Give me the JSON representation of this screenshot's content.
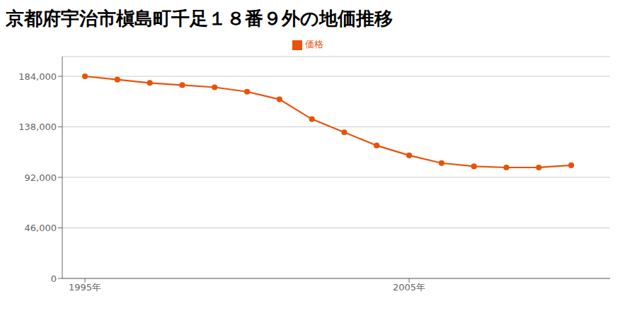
{
  "chart_data": {
    "type": "line",
    "title": "京都府宇治市槇島町千足１８番９外の地価推移",
    "x": [
      1995,
      1996,
      1997,
      1998,
      1999,
      2000,
      2001,
      2002,
      2003,
      2004,
      2005,
      2006,
      2007,
      2008,
      2009,
      2010
    ],
    "series": [
      {
        "name": "価格",
        "color": "#e8520a",
        "marker": "circle",
        "values": [
          184000,
          181000,
          178000,
          176000,
          174000,
          170000,
          163000,
          145000,
          133000,
          121000,
          112000,
          105000,
          102000,
          101000,
          101000,
          103000
        ]
      }
    ],
    "xlim": [
      1994.3,
      2011.2
    ],
    "xticks": [
      {
        "value": 1995,
        "label": "1995年"
      },
      {
        "value": 2005,
        "label": "2005年"
      }
    ],
    "ylim": [
      0,
      202000
    ],
    "yticks": [
      0,
      {
        "value": 46000,
        "label": "46,000"
      },
      {
        "value": 92000,
        "label": "92,000"
      },
      {
        "value": 138000,
        "label": "138,000"
      },
      {
        "value": 184000,
        "label": "184,000"
      }
    ],
    "grid": true,
    "legend": "top"
  }
}
